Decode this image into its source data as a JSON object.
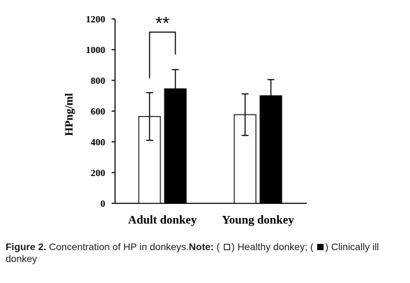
{
  "chart_data": {
    "type": "bar",
    "ylabel": "HPng/ml",
    "xlabel": "",
    "ylim": [
      0,
      1200
    ],
    "yticks": [
      0,
      200,
      400,
      600,
      800,
      1000,
      1200
    ],
    "categories": [
      "Adult donkey",
      "Young donkey"
    ],
    "series": [
      {
        "name": "Healthy donkey",
        "values": [
          565,
          577
        ],
        "errors": [
          155,
          135
        ],
        "fill": "#ffffff"
      },
      {
        "name": "Clinically ill donkey",
        "values": [
          745,
          700
        ],
        "errors": [
          125,
          105
        ],
        "fill": "#000000"
      }
    ],
    "annotations": [
      {
        "text": "**",
        "category": "Adult donkey"
      }
    ],
    "grid": false
  },
  "caption": {
    "figure": "Figure 2.",
    "text": " Concentration of HP in donkeys.",
    "note_label": "Note:",
    "open1": " ( ",
    "healthy": ") Healthy donkey; ( ",
    "ill": ") Clinically ill donkey"
  }
}
